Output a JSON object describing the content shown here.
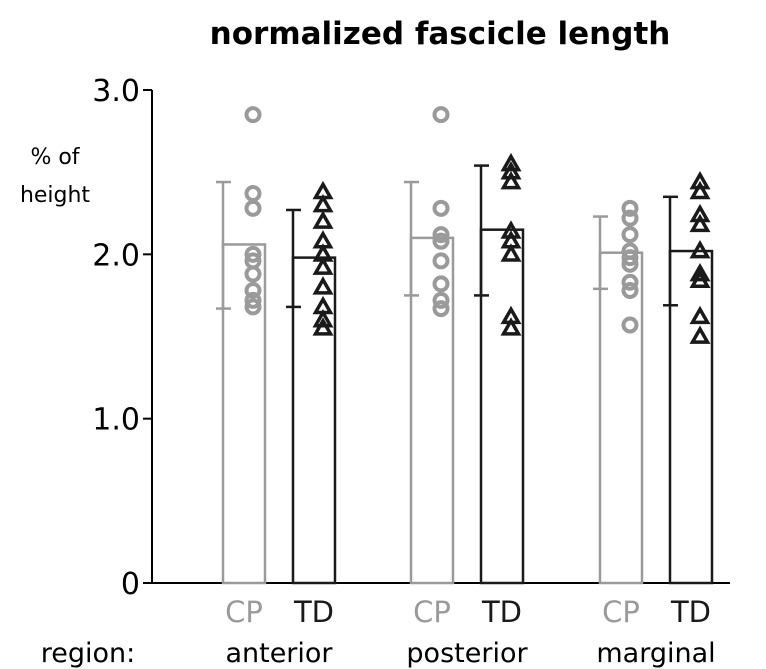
{
  "chart_data": {
    "type": "bar",
    "title": "normalized fascicle length",
    "ylabel_line1": "% of",
    "ylabel_line2": "height",
    "ylim": [
      0,
      3.0
    ],
    "yticks": [
      {
        "value": 0,
        "label": "0"
      },
      {
        "value": 1.0,
        "label": "1.0"
      },
      {
        "value": 2.0,
        "label": "2.0"
      },
      {
        "value": 3.0,
        "label": "3.0"
      }
    ],
    "region_label": "region:",
    "regions": [
      "anterior",
      "posterior",
      "marginal"
    ],
    "groups": [
      "CP",
      "TD"
    ],
    "colors": {
      "CP": "#9a9a9a",
      "TD": "#1a1a1a"
    },
    "markers": {
      "CP": "circle",
      "TD": "triangle"
    },
    "bars": [
      {
        "region": "anterior",
        "group": "CP",
        "mean": 2.06,
        "err_low": 1.67,
        "err_high": 2.44,
        "points": [
          2.85,
          2.37,
          2.28,
          2.0,
          1.96,
          1.88,
          1.78,
          1.72,
          1.68
        ]
      },
      {
        "region": "anterior",
        "group": "TD",
        "mean": 1.98,
        "err_low": 1.68,
        "err_high": 2.27,
        "points": [
          2.38,
          2.3,
          2.2,
          2.08,
          2.0,
          1.92,
          1.8,
          1.68,
          1.6,
          1.55
        ]
      },
      {
        "region": "posterior",
        "group": "CP",
        "mean": 2.1,
        "err_low": 1.75,
        "err_high": 2.44,
        "points": [
          2.85,
          2.28,
          2.12,
          2.08,
          1.96,
          1.82,
          1.72,
          1.67
        ]
      },
      {
        "region": "posterior",
        "group": "TD",
        "mean": 2.15,
        "err_low": 1.75,
        "err_high": 2.54,
        "points": [
          2.55,
          2.5,
          2.44,
          2.14,
          2.08,
          2.0,
          1.62,
          1.55
        ]
      },
      {
        "region": "marginal",
        "group": "CP",
        "mean": 2.01,
        "err_low": 1.79,
        "err_high": 2.23,
        "points": [
          2.28,
          2.22,
          2.12,
          2.02,
          1.98,
          1.94,
          1.83,
          1.78,
          1.57
        ]
      },
      {
        "region": "marginal",
        "group": "TD",
        "mean": 2.02,
        "err_low": 1.69,
        "err_high": 2.35,
        "points": [
          2.44,
          2.38,
          2.24,
          2.18,
          2.02,
          1.88,
          1.84,
          1.62,
          1.5
        ]
      }
    ]
  }
}
